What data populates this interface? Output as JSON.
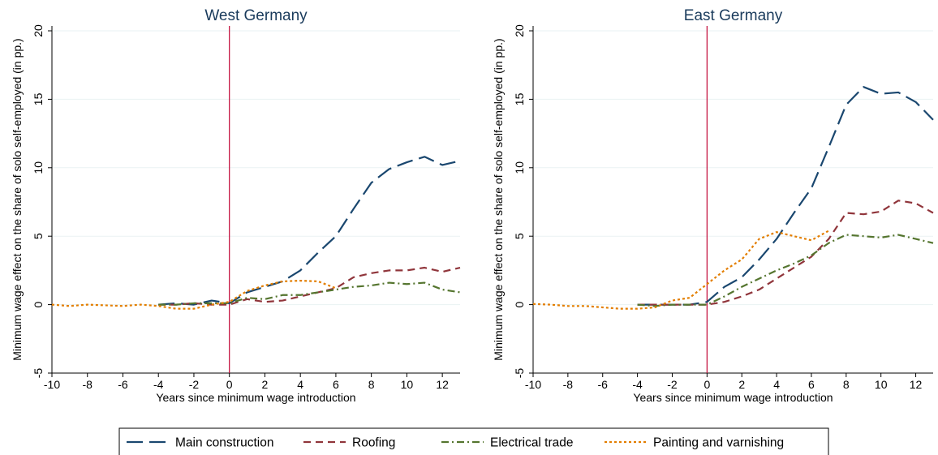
{
  "chart_data": [
    {
      "type": "line",
      "title": "West Germany",
      "xlabel": "Years since minimum wage introduction",
      "ylabel": "Minimum wage effect on the share of solo self-employed (in pp.)",
      "xlim": [
        -10,
        13
      ],
      "ylim": [
        -5,
        20
      ],
      "x_ticks": [
        -10,
        -8,
        -6,
        -4,
        -2,
        0,
        2,
        4,
        6,
        8,
        10,
        12
      ],
      "y_ticks": [
        -5,
        0,
        5,
        10,
        15,
        20
      ],
      "grid": true,
      "reference_line_x": 0,
      "series": [
        {
          "name": "Main construction",
          "x": [
            -4,
            -3,
            -2,
            -1,
            0,
            1,
            2,
            3,
            4,
            5,
            6,
            7,
            8,
            9,
            10,
            11,
            12,
            13
          ],
          "y": [
            0.0,
            0.1,
            0.0,
            0.3,
            0.1,
            0.9,
            1.3,
            1.7,
            2.5,
            3.8,
            5.0,
            7.0,
            8.9,
            9.9,
            10.4,
            10.8,
            10.2,
            10.5
          ]
        },
        {
          "name": "Roofing",
          "x": [
            -4,
            -3,
            -2,
            -1,
            0,
            1,
            2,
            3,
            4,
            5,
            6,
            7,
            8,
            9,
            10,
            11,
            12,
            13
          ],
          "y": [
            0.0,
            0.0,
            0.1,
            0.0,
            0.0,
            0.4,
            0.2,
            0.3,
            0.6,
            0.9,
            1.2,
            2.0,
            2.3,
            2.5,
            2.5,
            2.7,
            2.4,
            2.7
          ]
        },
        {
          "name": "Electrical trade",
          "x": [
            -4,
            -3,
            -2,
            -1,
            0,
            1,
            2,
            3,
            4,
            5,
            6,
            7,
            8,
            9,
            10,
            11,
            12,
            13
          ],
          "y": [
            0.0,
            0.0,
            0.1,
            0.1,
            0.1,
            0.5,
            0.4,
            0.7,
            0.7,
            0.9,
            1.1,
            1.3,
            1.4,
            1.6,
            1.5,
            1.6,
            1.1,
            0.9
          ]
        },
        {
          "name": "Painting and varnishing",
          "x": [
            -10,
            -9,
            -8,
            -7,
            -6,
            -5,
            -4,
            -3,
            -2,
            -1,
            0,
            1,
            2,
            3,
            4,
            5,
            6
          ],
          "y": [
            0.0,
            -0.1,
            0.0,
            -0.05,
            -0.1,
            0.0,
            -0.1,
            -0.3,
            -0.3,
            0.0,
            0.2,
            1.0,
            1.4,
            1.7,
            1.75,
            1.7,
            1.2
          ]
        }
      ]
    },
    {
      "type": "line",
      "title": "East Germany",
      "xlabel": "Years since minimum wage introduction",
      "ylabel": "Minimum wage effect on the share of solo self-employed (in pp.)",
      "xlim": [
        -10,
        13
      ],
      "ylim": [
        -5,
        20
      ],
      "x_ticks": [
        -10,
        -8,
        -6,
        -4,
        -2,
        0,
        2,
        4,
        6,
        8,
        10,
        12
      ],
      "y_ticks": [
        -5,
        0,
        5,
        10,
        15,
        20
      ],
      "grid": true,
      "reference_line_x": 0,
      "series": [
        {
          "name": "Main construction",
          "x": [
            -4,
            -3,
            -2,
            -1,
            0,
            1,
            2,
            3,
            4,
            5,
            6,
            7,
            8,
            9,
            10,
            11,
            12,
            13
          ],
          "y": [
            0.0,
            0.0,
            0.0,
            0.0,
            0.2,
            1.3,
            2.0,
            3.3,
            4.8,
            6.7,
            8.5,
            11.5,
            14.6,
            15.9,
            15.4,
            15.5,
            14.8,
            13.5
          ]
        },
        {
          "name": "Roofing",
          "x": [
            -4,
            -3,
            -2,
            -1,
            0,
            1,
            2,
            3,
            4,
            5,
            6,
            7,
            8,
            9,
            10,
            11,
            12,
            13
          ],
          "y": [
            0.0,
            0.0,
            0.0,
            0.0,
            0.0,
            0.2,
            0.6,
            1.1,
            1.9,
            2.7,
            3.5,
            4.8,
            6.7,
            6.6,
            6.8,
            7.6,
            7.4,
            6.7
          ]
        },
        {
          "name": "Electrical trade",
          "x": [
            -4,
            -3,
            -2,
            -1,
            0,
            1,
            2,
            3,
            4,
            5,
            6,
            7,
            8,
            9,
            10,
            11,
            12,
            13
          ],
          "y": [
            0.0,
            -0.1,
            0.0,
            0.0,
            0.0,
            0.6,
            1.3,
            1.9,
            2.5,
            3.0,
            3.6,
            4.5,
            5.1,
            5.0,
            4.9,
            5.1,
            4.8,
            4.5
          ]
        },
        {
          "name": "Painting and varnishing",
          "x": [
            -10,
            -9,
            -8,
            -7,
            -6,
            -5,
            -4,
            -3,
            -2,
            -1,
            0,
            1,
            2,
            3,
            4,
            5,
            6,
            7
          ],
          "y": [
            0.05,
            0.0,
            -0.1,
            -0.1,
            -0.2,
            -0.3,
            -0.3,
            -0.2,
            0.3,
            0.5,
            1.5,
            2.5,
            3.3,
            4.8,
            5.3,
            5.0,
            4.7,
            5.4
          ]
        }
      ]
    }
  ],
  "legend": {
    "position": "bottom",
    "items": [
      {
        "label": "Main construction",
        "color": "#1a476f",
        "dash": "long-dash"
      },
      {
        "label": "Roofing",
        "color": "#90353b",
        "dash": "dash"
      },
      {
        "label": "Electrical trade",
        "color": "#55752f",
        "dash": "dash-dot"
      },
      {
        "label": "Painting and varnishing",
        "color": "#e37e00",
        "dash": "dot"
      }
    ]
  },
  "colors": {
    "reference_line": "#c10534",
    "grid": "#eaf2f3",
    "title": "#1a3b5c"
  }
}
